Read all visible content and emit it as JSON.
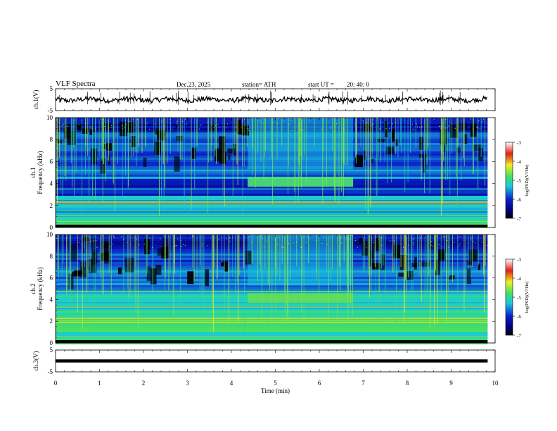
{
  "header": {
    "title": "VLF  Spectra",
    "date": "Dec.23, 2025",
    "station": "station= ATH",
    "start_label": "start  UT  =",
    "start_value": "20: 40: 0"
  },
  "chart_data": {
    "type": "heatmap",
    "title": "VLF  Spectra",
    "xlabel": "Time  (min)",
    "xlim": [
      0,
      10
    ],
    "xticks": [
      "0",
      "1",
      "2",
      "3",
      "4",
      "5",
      "6",
      "7",
      "8",
      "9",
      "10"
    ],
    "data_end_min": 9.83,
    "event": {
      "start_min": 4.37,
      "end_min": 6.77,
      "band_khz": [
        3.7,
        4.6
      ]
    },
    "panels": [
      {
        "id": "ch1-wave",
        "type": "line",
        "ylabel": "ch.1(V)",
        "ylim": [
          -5,
          5
        ],
        "yticks": [
          "5",
          "-5"
        ],
        "baseline": 0
      },
      {
        "id": "ch1-spec",
        "type": "heatmap",
        "ylabel_top": "ch.1",
        "ylabel": "Frequency  (kHz)",
        "ylim": [
          0,
          10
        ],
        "yticks": [
          "0",
          "2",
          "4",
          "6",
          "8",
          "10"
        ]
      },
      {
        "id": "ch2-spec",
        "type": "heatmap",
        "ylabel_top": "ch.2",
        "ylabel": "Frequency  (kHz)",
        "ylim": [
          0,
          10
        ],
        "yticks": [
          "0",
          "2",
          "4",
          "6",
          "8",
          "10"
        ]
      },
      {
        "id": "ch3-wave",
        "type": "line",
        "ylabel": "ch.3(V)",
        "ylim": [
          -5,
          5
        ],
        "yticks": [
          "5",
          "-5"
        ],
        "baseline": 0
      }
    ],
    "colorbar": {
      "label": "log(PSD)(V²/Hz)",
      "range": [
        -7,
        -3
      ],
      "ticks": [
        "-3",
        "-4",
        "-5",
        "-6",
        "-7"
      ]
    }
  },
  "colors": {
    "black": "#000000",
    "navy": "#00007a",
    "blue": "#0a1fc8",
    "cyan": "#18c8e0",
    "green": "#40e060",
    "yellow": "#f0f020",
    "red": "#e02018",
    "salmon": "#f0a0a0"
  }
}
